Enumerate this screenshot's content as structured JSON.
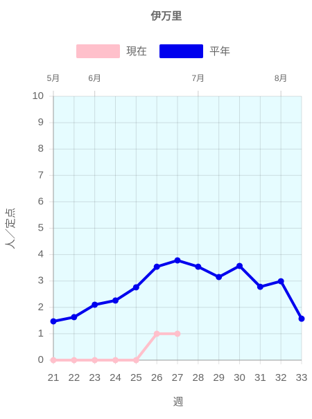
{
  "chart_data": {
    "type": "line",
    "title": "伊万里",
    "x": [
      21,
      22,
      23,
      24,
      25,
      26,
      27,
      28,
      29,
      30,
      31,
      32,
      33
    ],
    "xlim": [
      21,
      33
    ],
    "xticks": [
      21,
      22,
      23,
      24,
      25,
      26,
      27,
      28,
      29,
      30,
      31,
      32,
      33
    ],
    "top_ticks": [
      {
        "value": 21,
        "label": "5月"
      },
      {
        "value": 23,
        "label": "6月"
      },
      {
        "value": 28,
        "label": "7月"
      },
      {
        "value": 32,
        "label": "8月"
      }
    ],
    "ylim": [
      0,
      10
    ],
    "yticks": [
      0,
      1,
      2,
      3,
      4,
      5,
      6,
      7,
      8,
      9,
      10
    ],
    "xlabel": "週",
    "ylabel": "人／定点",
    "grid": true,
    "legend": "top",
    "series": [
      {
        "name": "現在",
        "color": "#ffc0cb",
        "values": [
          0,
          0,
          0,
          0,
          0,
          1,
          1,
          null,
          null,
          null,
          null,
          null,
          null
        ]
      },
      {
        "name": "平年",
        "color": "#0000ee",
        "values": [
          1.47,
          1.63,
          2.1,
          2.26,
          2.76,
          3.54,
          3.78,
          3.54,
          3.15,
          3.57,
          2.78,
          2.99,
          1.57
        ]
      }
    ]
  }
}
